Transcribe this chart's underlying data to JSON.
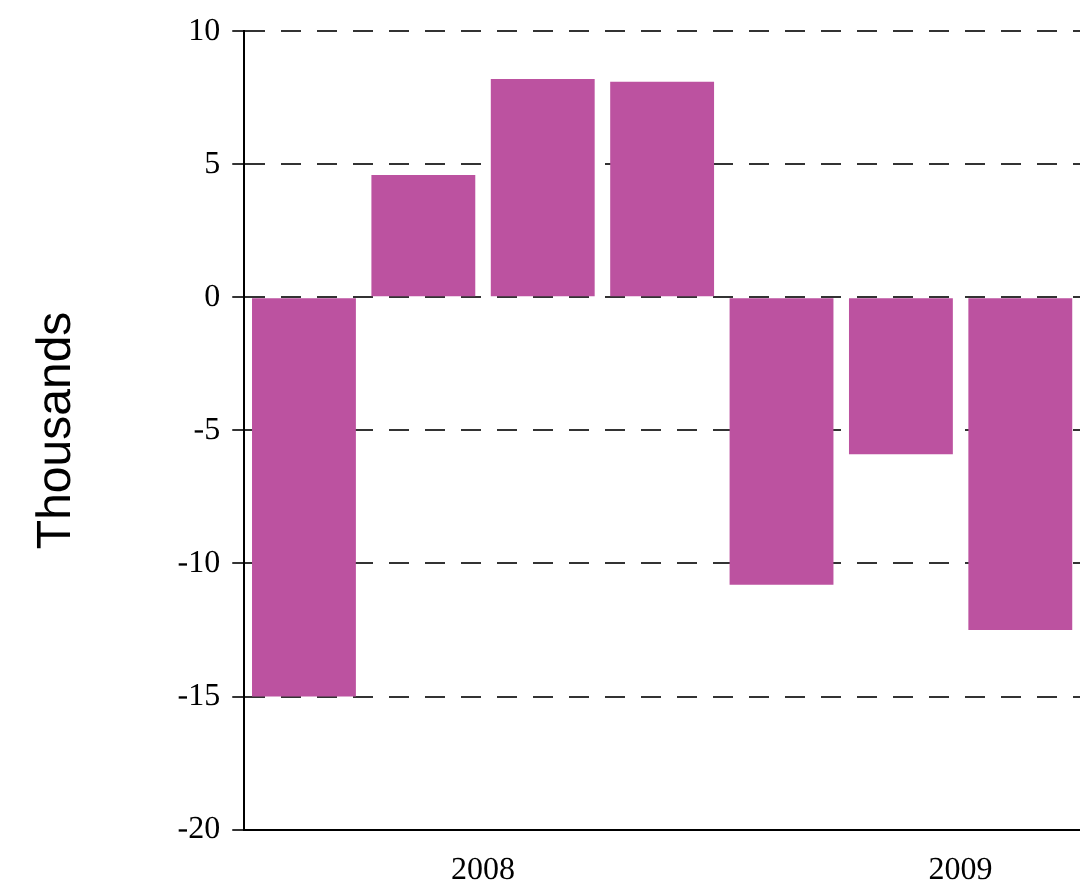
{
  "chart_data": {
    "type": "bar",
    "ylabel": "Thousands",
    "x": [
      2007.625,
      2007.875,
      2008.125,
      2008.375,
      2008.625,
      2008.875,
      2009.125
    ],
    "values": [
      -15,
      4.6,
      8.2,
      8.1,
      -10.8,
      -5.9,
      -12.5
    ],
    "color": "#bc52a0",
    "xlim": [
      2007.5,
      2009.25
    ],
    "xticks": [
      {
        "value": 2008,
        "label": "2008"
      },
      {
        "value": 2009,
        "label": "2009"
      }
    ],
    "ylim": [
      -20,
      10
    ],
    "yticks": [
      -20,
      -15,
      -10,
      -5,
      0,
      5,
      10
    ],
    "grid": "y",
    "line_style": "dashed",
    "legend": false
  }
}
